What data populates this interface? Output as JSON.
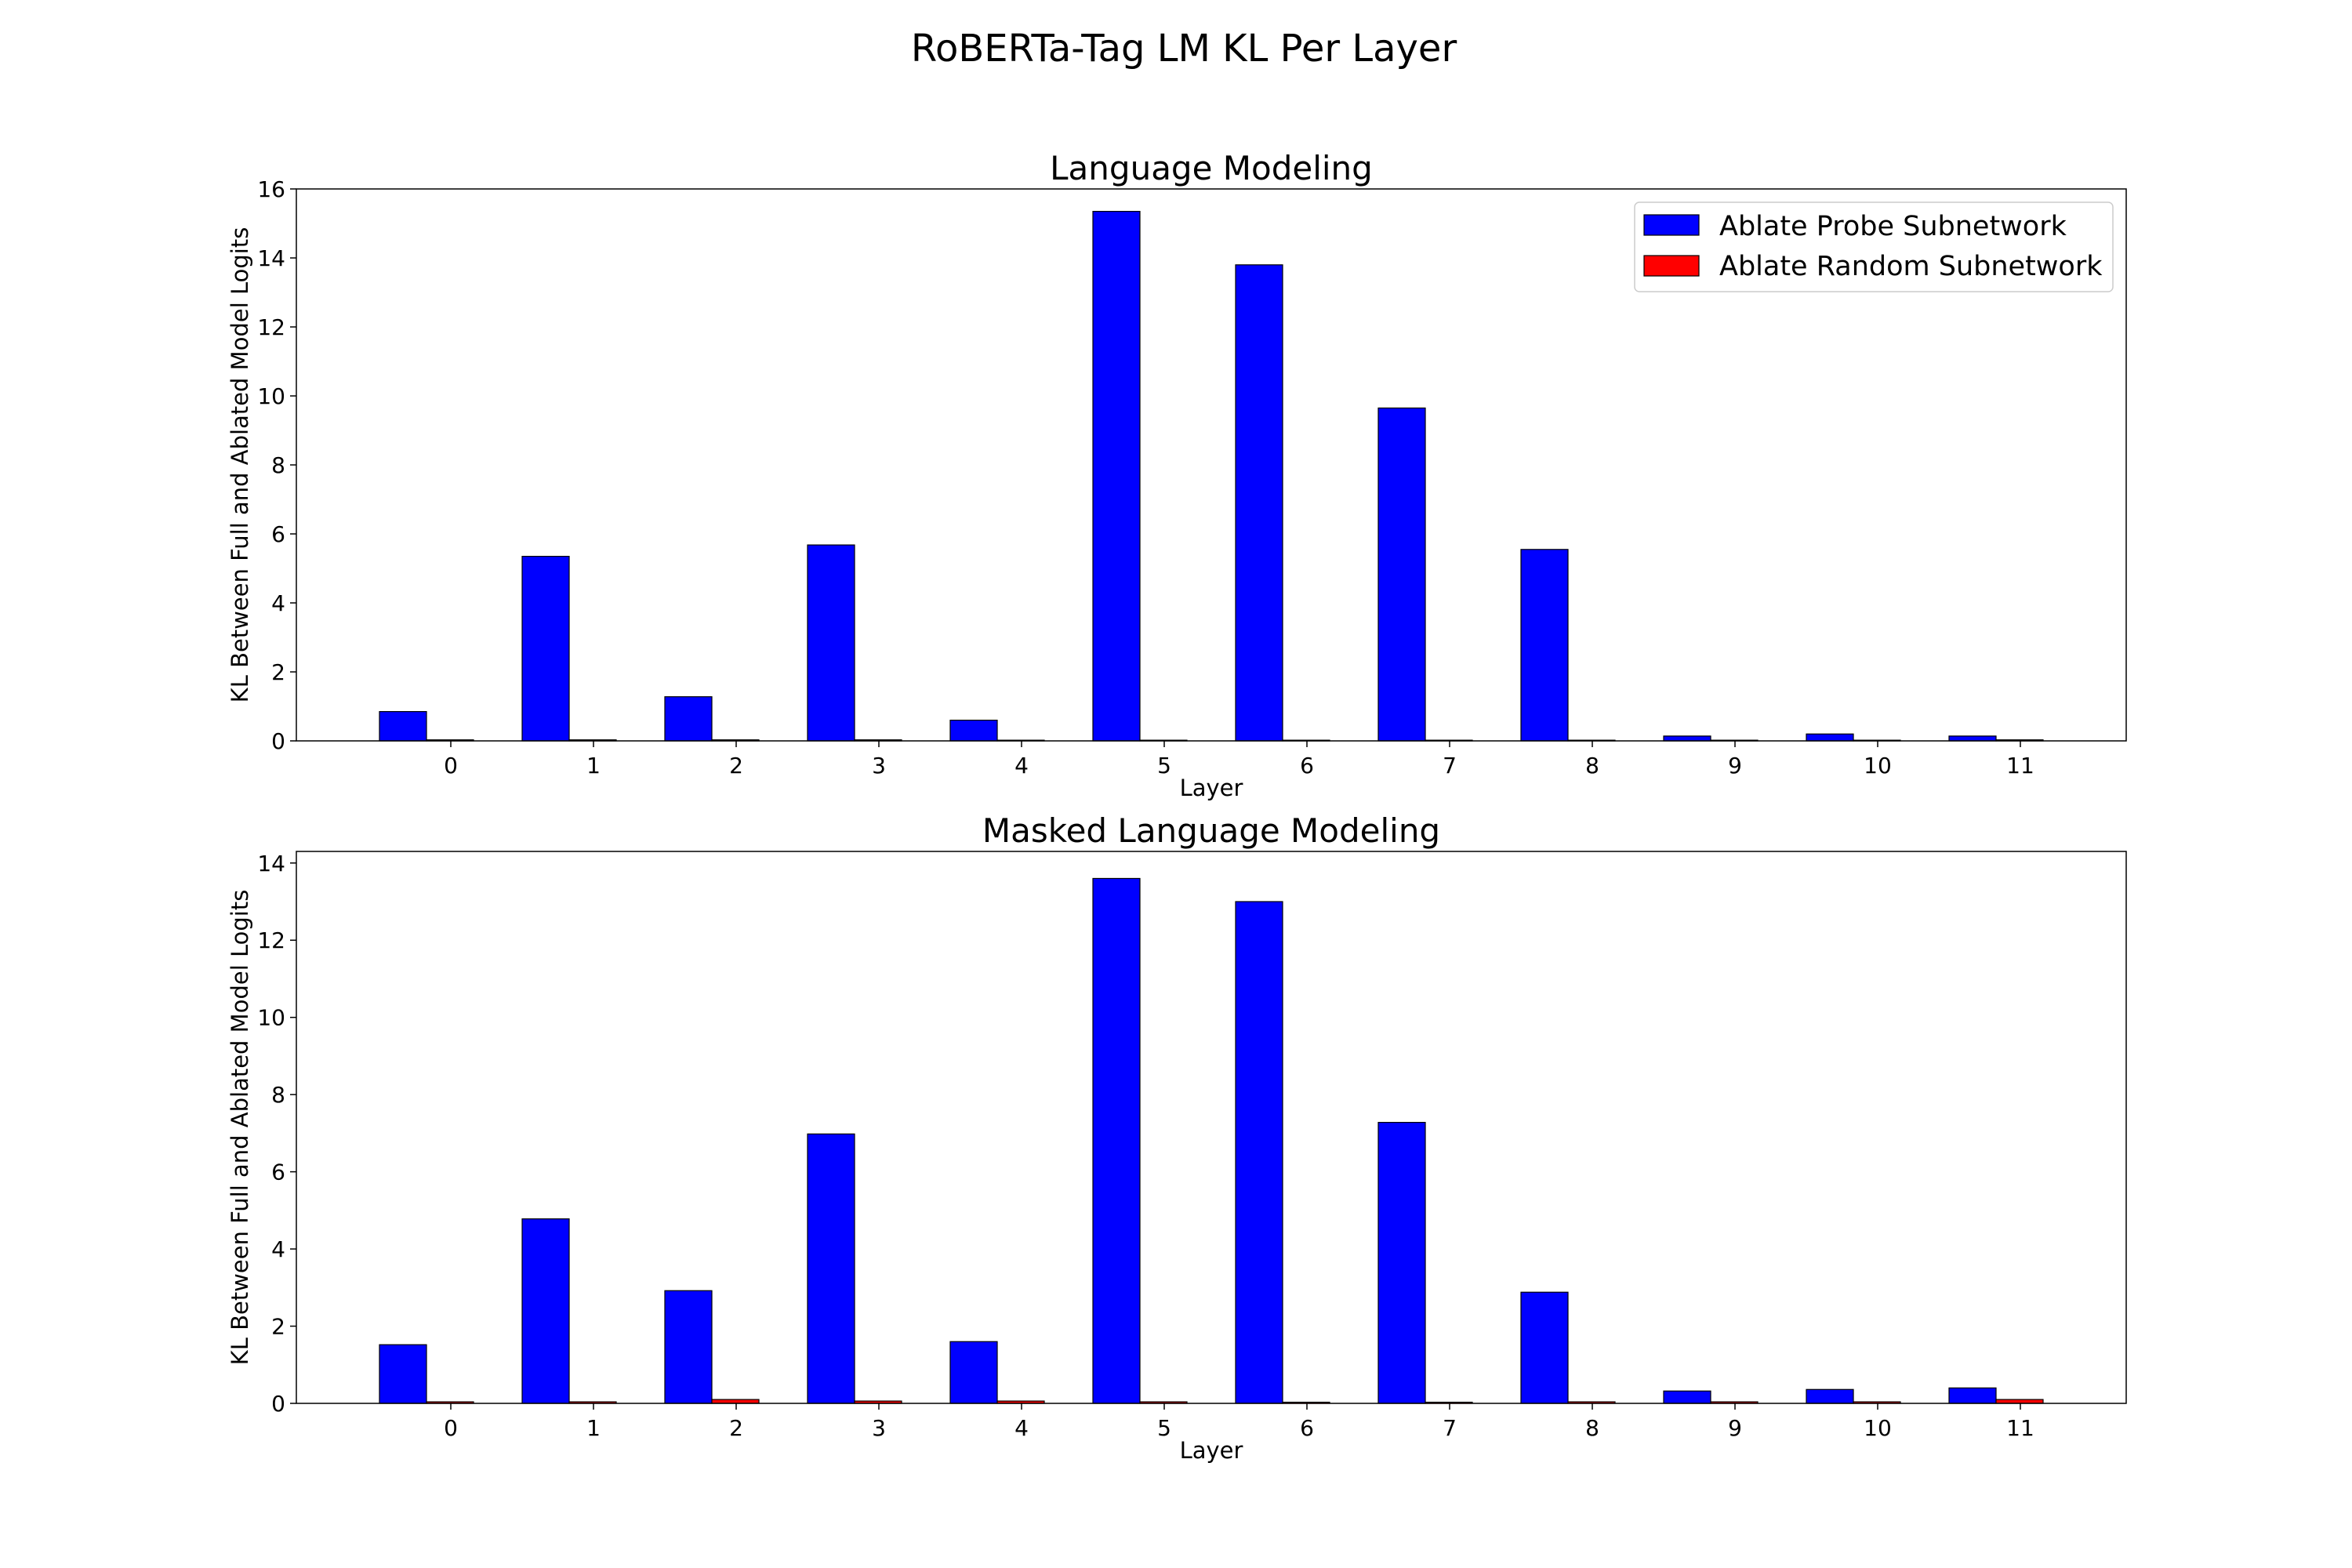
{
  "figure": {
    "title": "RoBERTa-Tag LM KL Per Layer"
  },
  "legend": {
    "probe_label": "Ablate Probe Subnetwork",
    "random_label": "Ablate Random Subnetwork"
  },
  "colors": {
    "probe": "#0000ff",
    "random": "#ff0000"
  },
  "chart_data": [
    {
      "type": "bar",
      "title": "Language Modeling",
      "xlabel": "Layer",
      "ylabel": "KL Between Full and Ablated Model Logits",
      "categories": [
        "0",
        "1",
        "2",
        "3",
        "4",
        "5",
        "6",
        "7",
        "8",
        "9",
        "10",
        "11"
      ],
      "ylim": [
        0,
        16
      ],
      "yticks": [
        0,
        2,
        4,
        6,
        8,
        10,
        12,
        14,
        16
      ],
      "legend": "top-right",
      "grid": false,
      "series": [
        {
          "name": "Ablate Probe Subnetwork",
          "values": [
            0.85,
            5.35,
            1.28,
            5.68,
            0.6,
            15.35,
            13.8,
            9.65,
            5.55,
            0.14,
            0.2,
            0.14
          ]
        },
        {
          "name": "Ablate Random Subnetwork",
          "values": [
            0.03,
            0.03,
            0.03,
            0.03,
            0.02,
            0.02,
            0.02,
            0.02,
            0.02,
            0.02,
            0.02,
            0.03
          ]
        }
      ]
    },
    {
      "type": "bar",
      "title": "Masked Language Modeling",
      "xlabel": "Layer",
      "ylabel": "KL Between Full and Ablated Model Logits",
      "categories": [
        "0",
        "1",
        "2",
        "3",
        "4",
        "5",
        "6",
        "7",
        "8",
        "9",
        "10",
        "11"
      ],
      "ylim": [
        0,
        14.3
      ],
      "yticks": [
        0,
        2,
        4,
        6,
        8,
        10,
        12,
        14
      ],
      "grid": false,
      "series": [
        {
          "name": "Ablate Probe Subnetwork",
          "values": [
            1.52,
            4.78,
            2.92,
            6.98,
            1.6,
            13.6,
            13.0,
            7.28,
            2.88,
            0.32,
            0.36,
            0.4
          ]
        },
        {
          "name": "Ablate Random Subnetwork",
          "values": [
            0.04,
            0.04,
            0.1,
            0.06,
            0.06,
            0.04,
            0.03,
            0.03,
            0.04,
            0.04,
            0.04,
            0.1
          ]
        }
      ]
    }
  ]
}
